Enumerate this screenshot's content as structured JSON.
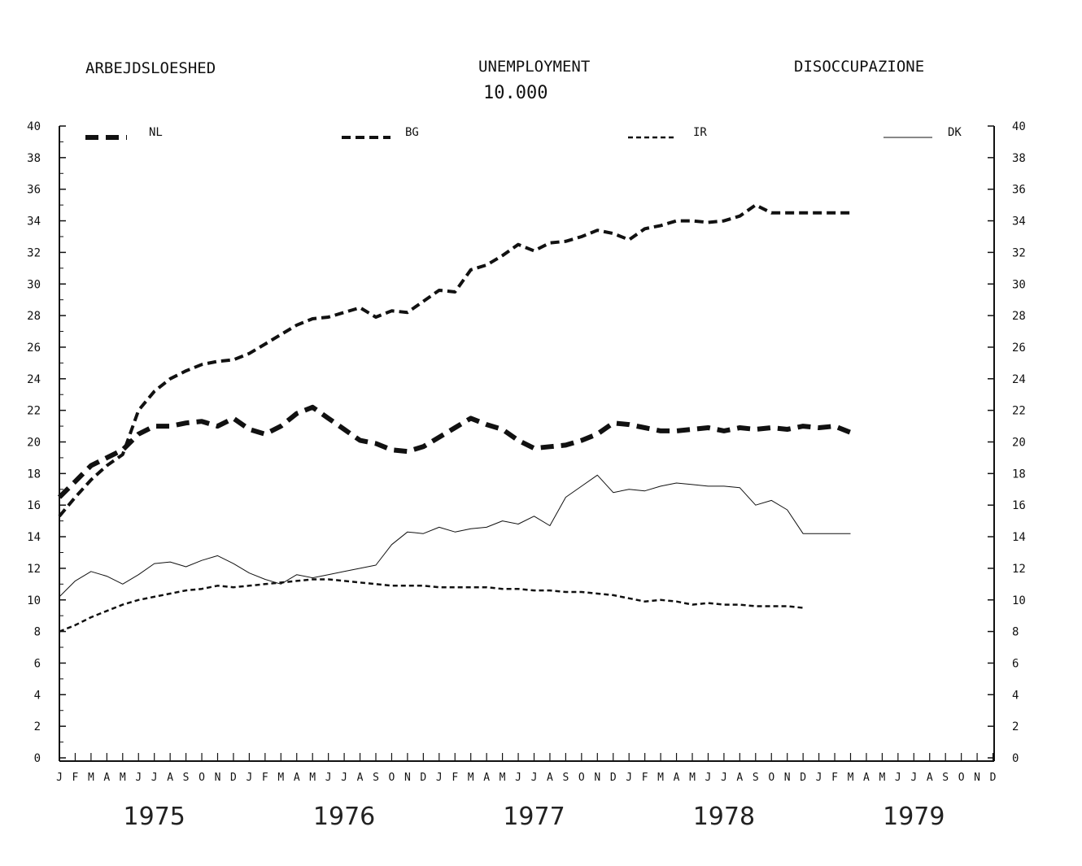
{
  "header": {
    "title_left": "ARBEJDSLOESHED",
    "title_center": "UNEMPLOYMENT",
    "unit": "10.000",
    "title_right": "DISOCCUPAZIONE"
  },
  "chart_data": {
    "type": "line",
    "ylim": [
      0,
      40
    ],
    "yticks": [
      0,
      2,
      4,
      6,
      8,
      10,
      12,
      14,
      16,
      18,
      20,
      22,
      24,
      26,
      28,
      30,
      32,
      34,
      36,
      38,
      40
    ],
    "months": [
      "J",
      "F",
      "M",
      "A",
      "M",
      "J",
      "J",
      "A",
      "S",
      "O",
      "N",
      "D",
      "J",
      "F",
      "M",
      "A",
      "M",
      "J",
      "J",
      "A",
      "S",
      "O",
      "N",
      "D",
      "J",
      "F",
      "M",
      "A",
      "M",
      "J",
      "J",
      "A",
      "S",
      "O",
      "N",
      "D",
      "J",
      "F",
      "M",
      "A",
      "M",
      "J",
      "J",
      "A",
      "S",
      "O",
      "N",
      "D",
      "J",
      "F",
      "M",
      "A",
      "M",
      "J",
      "J",
      "A",
      "S",
      "O",
      "N",
      "D"
    ],
    "years": [
      "1975",
      "1976",
      "1977",
      "1978",
      "1979"
    ],
    "grid": false,
    "legend_position": "top",
    "series": [
      {
        "name": "NL",
        "style": "heavy-dash",
        "x": [
          0,
          1,
          2,
          3,
          4,
          5,
          6,
          7,
          8,
          9,
          10,
          11,
          12,
          13,
          14,
          15,
          16,
          17,
          18,
          19,
          20,
          21,
          22,
          23,
          24,
          25,
          26,
          27,
          28,
          29,
          30,
          31,
          32,
          33,
          34,
          35,
          36,
          37,
          38,
          39,
          40,
          41,
          42,
          43,
          44,
          45,
          46,
          47,
          48,
          49,
          50
        ],
        "values": [
          16.5,
          17.5,
          18.5,
          19.0,
          19.5,
          20.5,
          21.0,
          21.0,
          21.2,
          21.3,
          21.0,
          21.5,
          20.8,
          20.5,
          21.0,
          21.8,
          22.2,
          21.5,
          20.8,
          20.1,
          19.9,
          19.5,
          19.4,
          19.7,
          20.3,
          20.9,
          21.5,
          21.1,
          20.8,
          20.1,
          19.6,
          19.7,
          19.8,
          20.1,
          20.5,
          21.2,
          21.1,
          20.9,
          20.7,
          20.7,
          20.8,
          20.9,
          20.7,
          20.9,
          20.8,
          20.9,
          20.8,
          21.0,
          20.9,
          21.0,
          20.6
        ]
      },
      {
        "name": "BG",
        "style": "dash",
        "x": [
          0,
          1,
          2,
          3,
          4,
          5,
          6,
          7,
          8,
          9,
          10,
          11,
          12,
          13,
          14,
          15,
          16,
          17,
          18,
          19,
          20,
          21,
          22,
          23,
          24,
          25,
          26,
          27,
          28,
          29,
          30,
          31,
          32,
          33,
          34,
          35,
          36,
          37,
          38,
          39,
          40,
          41,
          42,
          43,
          44,
          45,
          46,
          47,
          48,
          49,
          50
        ],
        "values": [
          15.3,
          16.5,
          17.6,
          18.5,
          19.2,
          22.0,
          23.2,
          24.0,
          24.5,
          24.9,
          25.1,
          25.2,
          25.6,
          26.2,
          26.8,
          27.4,
          27.8,
          27.9,
          28.2,
          28.5,
          27.9,
          28.3,
          28.2,
          28.9,
          29.6,
          29.5,
          30.9,
          31.2,
          31.8,
          32.5,
          32.1,
          32.6,
          32.7,
          33.0,
          33.4,
          33.2,
          32.8,
          33.5,
          33.7,
          34.0,
          34.0,
          33.9,
          34.0,
          34.3,
          35.0,
          34.5,
          34.5,
          34.5,
          34.5,
          34.5,
          34.5
        ]
      },
      {
        "name": "IR",
        "style": "fine-dash",
        "x": [
          0,
          1,
          2,
          3,
          4,
          5,
          6,
          7,
          8,
          9,
          10,
          11,
          12,
          13,
          14,
          15,
          16,
          17,
          18,
          19,
          20,
          21,
          22,
          23,
          24,
          25,
          26,
          27,
          28,
          29,
          30,
          31,
          32,
          33,
          34,
          35,
          36,
          37,
          38,
          39,
          40,
          41,
          42,
          43,
          44,
          45,
          46,
          47
        ],
        "values": [
          8.0,
          8.4,
          8.9,
          9.3,
          9.7,
          10.0,
          10.2,
          10.4,
          10.6,
          10.7,
          10.9,
          10.8,
          10.9,
          11.0,
          11.1,
          11.2,
          11.3,
          11.3,
          11.2,
          11.1,
          11.0,
          10.9,
          10.9,
          10.9,
          10.8,
          10.8,
          10.8,
          10.8,
          10.7,
          10.7,
          10.6,
          10.6,
          10.5,
          10.5,
          10.4,
          10.3,
          10.1,
          9.9,
          10.0,
          9.9,
          9.7,
          9.8,
          9.7,
          9.7,
          9.6,
          9.6,
          9.6,
          9.5
        ]
      },
      {
        "name": "DK",
        "style": "thin",
        "x": [
          0,
          1,
          2,
          3,
          4,
          5,
          6,
          7,
          8,
          9,
          10,
          11,
          12,
          13,
          14,
          15,
          16,
          17,
          18,
          19,
          20,
          21,
          22,
          23,
          24,
          25,
          26,
          27,
          28,
          29,
          30,
          31,
          32,
          33,
          34,
          35,
          36,
          37,
          38,
          39,
          40,
          41,
          42,
          43,
          44,
          45,
          46,
          47,
          48,
          49,
          50
        ],
        "values": [
          10.2,
          11.2,
          11.8,
          11.5,
          11.0,
          11.6,
          12.3,
          12.4,
          12.1,
          12.5,
          12.8,
          12.3,
          11.7,
          11.3,
          11.0,
          11.6,
          11.4,
          11.6,
          11.8,
          12.0,
          12.2,
          13.5,
          14.3,
          14.2,
          14.6,
          14.3,
          14.5,
          14.6,
          15.0,
          14.8,
          15.3,
          14.7,
          16.5,
          17.2,
          17.9,
          16.8,
          17.0,
          16.9,
          17.2,
          17.4,
          17.3,
          17.2,
          17.2,
          17.1,
          16.0,
          16.3,
          15.7,
          14.2,
          14.2,
          14.2,
          14.2
        ]
      }
    ]
  }
}
